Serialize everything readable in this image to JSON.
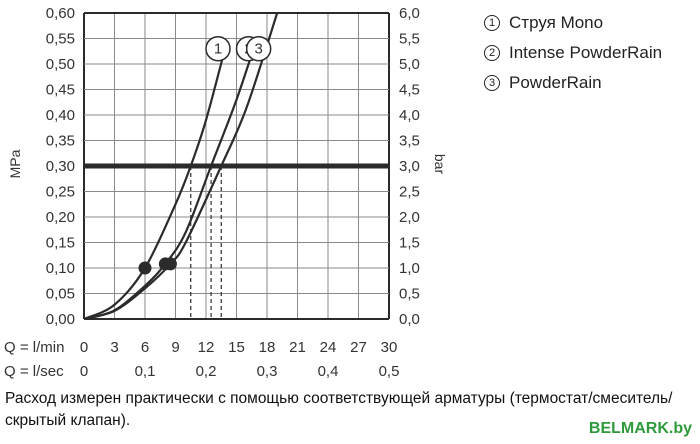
{
  "chart_data": {
    "type": "line",
    "y_left": {
      "label": "MPa",
      "ticks": [
        "0,00",
        "0,05",
        "0,10",
        "0,15",
        "0,20",
        "0,25",
        "0,30",
        "0,35",
        "0,40",
        "0,45",
        "0,50",
        "0,55",
        "0,60"
      ],
      "range": [
        0,
        0.6
      ]
    },
    "y_right": {
      "label": "bar",
      "ticks": [
        "0,0",
        "0,5",
        "1,0",
        "1,5",
        "2,0",
        "2,5",
        "3,0",
        "3,5",
        "4,0",
        "4,5",
        "5,0",
        "5,5",
        "6,0"
      ],
      "range": [
        0,
        6
      ]
    },
    "x_flow_min": {
      "label": "Q = l/min",
      "ticks": [
        "0",
        "3",
        "6",
        "9",
        "12",
        "15",
        "18",
        "21",
        "24",
        "27",
        "30"
      ],
      "range": [
        0,
        30
      ]
    },
    "x_flow_sec": {
      "label": "Q = l/sec",
      "ticks": [
        "0",
        "0,1",
        "0,2",
        "0,3",
        "0,4",
        "0,5"
      ]
    },
    "reference_line": {
      "pressure_mpa": 0.3
    },
    "grid": true,
    "series": [
      {
        "name": "Струя Mono",
        "marker": "1",
        "x": [
          0,
          3,
          6,
          9,
          10.5,
          12,
          14
        ],
        "y": [
          0,
          0.028,
          0.1,
          0.225,
          0.3,
          0.39,
          0.54
        ],
        "marked_point": {
          "x": 6,
          "y": 0.1
        },
        "flow_at_reference": 10.5
      },
      {
        "name": "Intense PowderRain",
        "marker": "2",
        "x": [
          0,
          3,
          6,
          8,
          10,
          12.5,
          15,
          17
        ],
        "y": [
          0,
          0.017,
          0.065,
          0.108,
          0.17,
          0.3,
          0.43,
          0.55
        ],
        "marked_point": {
          "x": 8,
          "y": 0.108
        },
        "flow_at_reference": 12.5
      },
      {
        "name": "PowderRain",
        "marker": "3",
        "x": [
          0,
          3,
          6,
          8.5,
          10,
          13.5,
          16,
          19
        ],
        "y": [
          0,
          0.016,
          0.06,
          0.108,
          0.15,
          0.3,
          0.415,
          0.6
        ],
        "marked_point": {
          "x": 8.5,
          "y": 0.108
        },
        "flow_at_reference": 13.5
      }
    ],
    "legend": {
      "placement": "top-right",
      "items": [
        {
          "marker": "1",
          "label": "Струя Mono"
        },
        {
          "marker": "2",
          "label": "Intense PowderRain"
        },
        {
          "marker": "3",
          "label": "PowderRain"
        }
      ]
    }
  },
  "caption": "Расход измерен практически с помощью соответствующей арматуры (термостат/смеситель/скрытый клапан).",
  "watermark": "BELMARK.by",
  "colors": {
    "line": "#2b2b2b",
    "grid": "#8a8a8a",
    "watermark": "#2e9a3c"
  }
}
